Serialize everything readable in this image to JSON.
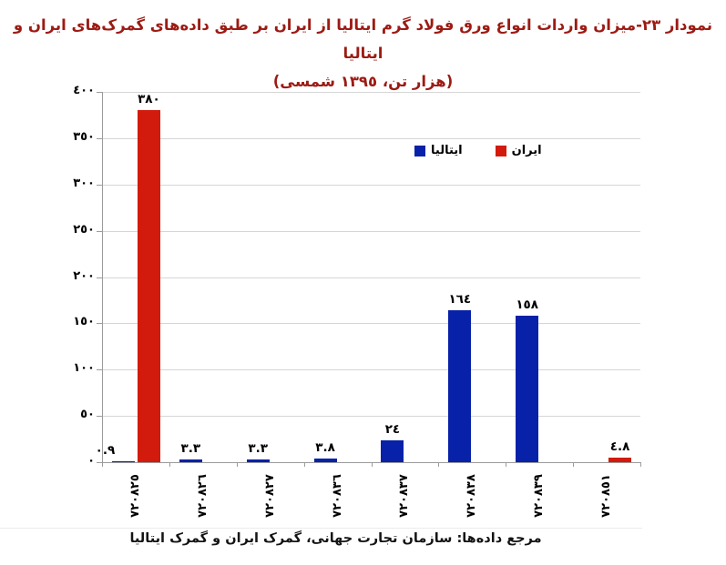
{
  "title": {
    "line1": "نمودار ٢٣-میزان واردات انواع ورق فولاد گرم ایتالیا از ایران بر طبق داده‌های گمرک‌های ایران و ایتالیا",
    "line2": "(هزار تن، ١٣٩٥ شمسی)"
  },
  "footer": {
    "text": "مرجع داده‌ها: سازمان تجارت جهانی، گمرک ایران و گمرک ایتالیا"
  },
  "colors": {
    "title": "#9c1b14",
    "footer": "#141414",
    "grid": "#d6d6d6",
    "axis": "#9b9b9b",
    "italy_blue": "#0721a8",
    "iran_red": "#d21b0c"
  },
  "chart_data": {
    "type": "bar",
    "title": "نمودار ٢٣-میزان واردات انواع ورق فولاد گرم ایتالیا از ایران بر طبق داده‌های گمرک‌های ایران و ایتالیا (هزار تن، ١٣٩٥ شمسی)",
    "unit": "هزار تن",
    "year": "١٣٩٥ شمسی",
    "categories": [
      "720825",
      "720826",
      "720827",
      "720836",
      "720837",
      "720838",
      "720839",
      "720851"
    ],
    "categories_display": [
      "٧٢٠٨٢٥",
      "٧٢٠٨٢٦",
      "٧٢٠٨٢٧",
      "٧٢٠٨٣٦",
      "٧٢٠٨٣٧",
      "٧٢٠٨٣٨",
      "٧٢٠٨٣٩",
      "٧٢٠٨٥١"
    ],
    "series": [
      {
        "name": "ایتالیا",
        "name_en": "Italy",
        "color": "#0721a8",
        "values": [
          0.9,
          3.3,
          3.3,
          3.8,
          24,
          164,
          158,
          null
        ],
        "labels": [
          "٠.٩",
          "٣.٣",
          "٣.٣",
          "٣.٨",
          "٢٤",
          "١٦٤",
          "١٥٨",
          ""
        ]
      },
      {
        "name": "ایران",
        "name_en": "Iran",
        "color": "#d21b0c",
        "values": [
          380,
          null,
          null,
          null,
          null,
          null,
          null,
          4.8
        ],
        "labels": [
          "٣٨٠",
          "",
          "",
          "",
          "",
          "",
          "",
          "٤.٨"
        ]
      }
    ],
    "ylim": [
      0,
      400
    ],
    "yticks": [
      0,
      50,
      100,
      150,
      200,
      250,
      300,
      350,
      400
    ],
    "yticks_display": [
      "٠",
      "٥٠",
      "١٠٠",
      "١٥٠",
      "٢٠٠",
      "٢٥٠",
      "٣٠٠",
      "٣٥٠",
      "٤٠٠"
    ],
    "grid": true,
    "legend_position": "inside-top-right",
    "xlabel": "",
    "ylabel": ""
  }
}
